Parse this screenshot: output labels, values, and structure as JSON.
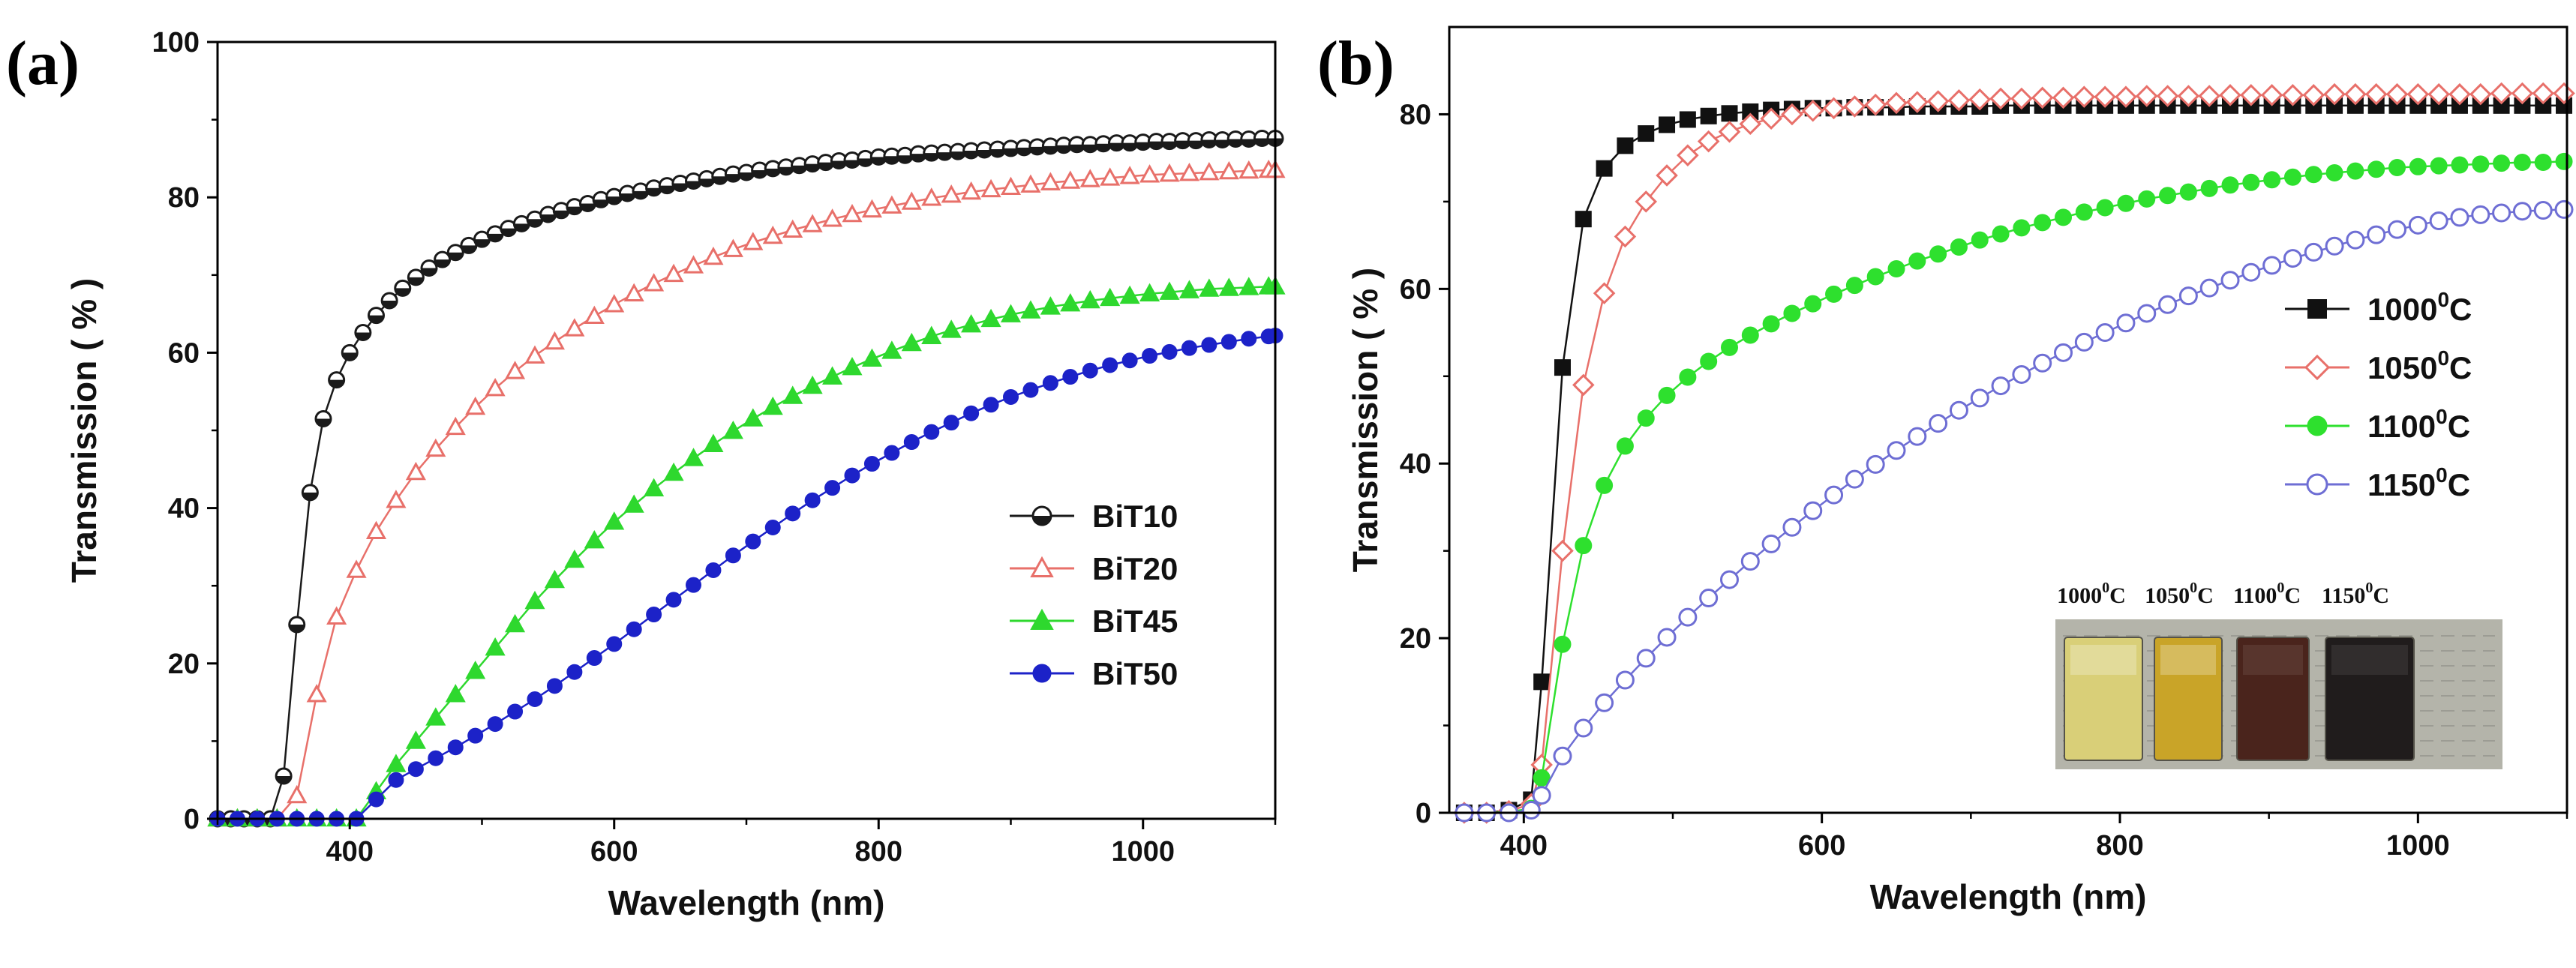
{
  "chart_data": [
    {
      "type": "scatter",
      "panel_label": "(a)",
      "xlabel": "Wavelength (nm)",
      "ylabel": "Transmission ( % )",
      "xlim": [
        300,
        1100
      ],
      "ylim": [
        0,
        100
      ],
      "xticks": [
        400,
        600,
        800,
        1000
      ],
      "yticks": [
        0,
        20,
        40,
        60,
        80,
        100
      ],
      "grid": false,
      "legend_position": "bottom-right",
      "series": [
        {
          "name": "BiT10",
          "color": "#1a1a1a",
          "marker": "half-circle",
          "x": [
            300,
            310,
            320,
            330,
            340,
            350,
            360,
            370,
            380,
            390,
            400,
            410,
            420,
            430,
            440,
            450,
            460,
            470,
            480,
            490,
            500,
            510,
            520,
            530,
            540,
            550,
            560,
            570,
            580,
            590,
            600,
            610,
            620,
            630,
            640,
            650,
            660,
            670,
            680,
            690,
            700,
            710,
            720,
            730,
            740,
            750,
            760,
            770,
            780,
            790,
            800,
            810,
            820,
            830,
            840,
            850,
            860,
            870,
            880,
            890,
            900,
            910,
            920,
            930,
            940,
            950,
            960,
            970,
            980,
            990,
            1000,
            1010,
            1020,
            1030,
            1040,
            1050,
            1060,
            1070,
            1080,
            1090,
            1100
          ],
          "y": [
            0,
            0,
            0,
            0,
            0,
            5.5,
            25,
            42,
            51.5,
            56.5,
            60,
            62.6,
            64.8,
            66.7,
            68.3,
            69.7,
            70.9,
            72,
            72.9,
            73.8,
            74.6,
            75.3,
            76,
            76.6,
            77.2,
            77.8,
            78.3,
            78.8,
            79.2,
            79.7,
            80.1,
            80.5,
            80.8,
            81.2,
            81.5,
            81.8,
            82.1,
            82.4,
            82.7,
            83,
            83.2,
            83.5,
            83.7,
            83.9,
            84.1,
            84.3,
            84.5,
            84.7,
            84.8,
            85,
            85.2,
            85.3,
            85.4,
            85.6,
            85.7,
            85.8,
            85.9,
            86,
            86.1,
            86.2,
            86.3,
            86.4,
            86.5,
            86.6,
            86.7,
            86.8,
            86.8,
            86.9,
            87,
            87,
            87.1,
            87.2,
            87.2,
            87.3,
            87.3,
            87.4,
            87.4,
            87.5,
            87.5,
            87.6,
            87.6
          ]
        },
        {
          "name": "BiT20",
          "color": "#e8706a",
          "marker": "open-triangle",
          "x": [
            300,
            315,
            330,
            345,
            360,
            375,
            390,
            405,
            420,
            435,
            450,
            465,
            480,
            495,
            510,
            525,
            540,
            555,
            570,
            585,
            600,
            615,
            630,
            645,
            660,
            675,
            690,
            705,
            720,
            735,
            750,
            765,
            780,
            795,
            810,
            825,
            840,
            855,
            870,
            885,
            900,
            915,
            930,
            945,
            960,
            975,
            990,
            1005,
            1020,
            1035,
            1050,
            1065,
            1080,
            1095,
            1100
          ],
          "y": [
            0,
            0,
            0,
            0,
            3,
            16,
            26,
            32,
            37,
            41,
            44.6,
            47.6,
            50.4,
            53,
            55.4,
            57.6,
            59.6,
            61.4,
            63.1,
            64.7,
            66.2,
            67.6,
            68.9,
            70.1,
            71.2,
            72.3,
            73.3,
            74.2,
            75,
            75.8,
            76.5,
            77.2,
            77.8,
            78.4,
            78.9,
            79.4,
            79.9,
            80.3,
            80.7,
            81,
            81.3,
            81.6,
            81.9,
            82.1,
            82.3,
            82.5,
            82.7,
            82.9,
            83,
            83.1,
            83.2,
            83.3,
            83.4,
            83.5,
            83.5
          ]
        },
        {
          "name": "BiT45",
          "color": "#2ed82e",
          "marker": "filled-triangle",
          "x": [
            300,
            315,
            330,
            345,
            360,
            375,
            390,
            405,
            420,
            435,
            450,
            465,
            480,
            495,
            510,
            525,
            540,
            555,
            570,
            585,
            600,
            615,
            630,
            645,
            660,
            675,
            690,
            705,
            720,
            735,
            750,
            765,
            780,
            795,
            810,
            825,
            840,
            855,
            870,
            885,
            900,
            915,
            930,
            945,
            960,
            975,
            990,
            1005,
            1020,
            1035,
            1050,
            1065,
            1080,
            1095,
            1100
          ],
          "y": [
            0,
            0,
            0,
            0,
            0,
            0,
            0,
            0,
            3.5,
            7,
            10,
            13,
            16,
            19,
            22,
            25,
            28,
            30.7,
            33.3,
            35.8,
            38.2,
            40.4,
            42.5,
            44.5,
            46.4,
            48.2,
            49.9,
            51.5,
            53,
            54.4,
            55.7,
            56.9,
            58.1,
            59.2,
            60.2,
            61.2,
            62.1,
            62.9,
            63.6,
            64.3,
            64.9,
            65.4,
            65.9,
            66.3,
            66.7,
            67,
            67.3,
            67.6,
            67.8,
            68,
            68.2,
            68.3,
            68.4,
            68.5,
            68.5
          ]
        },
        {
          "name": "BiT50",
          "color": "#1c22c8",
          "marker": "filled-circle",
          "x": [
            300,
            315,
            330,
            345,
            360,
            375,
            390,
            405,
            420,
            435,
            450,
            465,
            480,
            495,
            510,
            525,
            540,
            555,
            570,
            585,
            600,
            615,
            630,
            645,
            660,
            675,
            690,
            705,
            720,
            735,
            750,
            765,
            780,
            795,
            810,
            825,
            840,
            855,
            870,
            885,
            900,
            915,
            930,
            945,
            960,
            975,
            990,
            1005,
            1020,
            1035,
            1050,
            1065,
            1080,
            1095,
            1100
          ],
          "y": [
            0,
            0,
            0,
            0,
            0,
            0,
            0,
            0,
            2.5,
            5,
            6.4,
            7.8,
            9.2,
            10.7,
            12.2,
            13.8,
            15.4,
            17.1,
            18.9,
            20.7,
            22.5,
            24.4,
            26.3,
            28.2,
            30.1,
            32,
            33.9,
            35.7,
            37.5,
            39.3,
            41,
            42.6,
            44.2,
            45.7,
            47.1,
            48.5,
            49.8,
            51,
            52.2,
            53.3,
            54.3,
            55.2,
            56.1,
            56.9,
            57.7,
            58.4,
            59,
            59.6,
            60.1,
            60.6,
            61,
            61.4,
            61.8,
            62.1,
            62.2
          ]
        }
      ]
    },
    {
      "type": "scatter",
      "panel_label": "(b)",
      "xlabel": "Wavelength (nm)",
      "ylabel": "Transmission ( % )",
      "xlim": [
        350,
        1100
      ],
      "ylim": [
        0,
        90
      ],
      "xticks": [
        400,
        600,
        800,
        1000
      ],
      "yticks": [
        0,
        20,
        40,
        60,
        80
      ],
      "grid": false,
      "legend_position": "center-right",
      "series": [
        {
          "name": "1000",
          "sup": "0",
          "unit": "C",
          "color": "#111111",
          "marker": "filled-square",
          "x": [
            360,
            375,
            390,
            405,
            412,
            426,
            440,
            454,
            468,
            482,
            496,
            510,
            524,
            538,
            552,
            566,
            580,
            594,
            608,
            622,
            636,
            650,
            664,
            678,
            692,
            706,
            720,
            734,
            748,
            762,
            776,
            790,
            804,
            818,
            832,
            846,
            860,
            874,
            888,
            902,
            916,
            930,
            944,
            958,
            972,
            986,
            1000,
            1014,
            1028,
            1042,
            1056,
            1070,
            1084,
            1098
          ],
          "y": [
            0,
            0,
            0.3,
            1.5,
            15,
            51,
            68,
            73.8,
            76.4,
            77.8,
            78.8,
            79.4,
            79.8,
            80.1,
            80.3,
            80.5,
            80.6,
            80.7,
            80.7,
            80.8,
            80.8,
            80.8,
            80.9,
            80.9,
            80.9,
            80.9,
            81,
            81,
            81,
            81,
            81,
            81,
            81,
            81,
            81,
            81,
            81,
            81,
            81,
            81,
            81,
            81,
            81,
            81,
            81,
            81,
            81,
            81,
            81,
            81,
            81,
            81,
            81,
            81
          ]
        },
        {
          "name": "1050",
          "sup": "0",
          "unit": "C",
          "color": "#e8706a",
          "marker": "open-diamond",
          "x": [
            360,
            375,
            390,
            405,
            412,
            426,
            440,
            454,
            468,
            482,
            496,
            510,
            524,
            538,
            552,
            566,
            580,
            594,
            608,
            622,
            636,
            650,
            664,
            678,
            692,
            706,
            720,
            734,
            748,
            762,
            776,
            790,
            804,
            818,
            832,
            846,
            860,
            874,
            888,
            902,
            916,
            930,
            944,
            958,
            972,
            986,
            1000,
            1014,
            1028,
            1042,
            1056,
            1070,
            1084,
            1098
          ],
          "y": [
            0,
            0,
            0.2,
            1,
            5.5,
            30,
            49,
            59.5,
            66,
            70,
            73,
            75.3,
            76.9,
            78,
            78.9,
            79.5,
            80,
            80.4,
            80.7,
            80.9,
            81.1,
            81.3,
            81.4,
            81.5,
            81.6,
            81.7,
            81.8,
            81.8,
            81.9,
            81.9,
            82,
            82,
            82,
            82.1,
            82.1,
            82.1,
            82.1,
            82.2,
            82.2,
            82.2,
            82.2,
            82.2,
            82.3,
            82.3,
            82.3,
            82.3,
            82.3,
            82.3,
            82.3,
            82.3,
            82.4,
            82.4,
            82.4,
            82.4
          ]
        },
        {
          "name": "1100",
          "sup": "0",
          "unit": "C",
          "color": "#2ee02e",
          "marker": "filled-circle",
          "x": [
            360,
            375,
            390,
            405,
            412,
            426,
            440,
            454,
            468,
            482,
            496,
            510,
            524,
            538,
            552,
            566,
            580,
            594,
            608,
            622,
            636,
            650,
            664,
            678,
            692,
            706,
            720,
            734,
            748,
            762,
            776,
            790,
            804,
            818,
            832,
            846,
            860,
            874,
            888,
            902,
            916,
            930,
            944,
            958,
            972,
            986,
            1000,
            1014,
            1028,
            1042,
            1056,
            1070,
            1084,
            1098
          ],
          "y": [
            0,
            0,
            0.1,
            0.5,
            4,
            19.3,
            30.6,
            37.5,
            42,
            45.2,
            47.8,
            49.9,
            51.7,
            53.3,
            54.7,
            56,
            57.2,
            58.3,
            59.4,
            60.4,
            61.4,
            62.3,
            63.2,
            64,
            64.8,
            65.6,
            66.3,
            67,
            67.6,
            68.2,
            68.8,
            69.3,
            69.8,
            70.3,
            70.7,
            71.1,
            71.5,
            71.9,
            72.2,
            72.5,
            72.8,
            73.1,
            73.3,
            73.5,
            73.7,
            73.9,
            74,
            74.1,
            74.2,
            74.3,
            74.4,
            74.5,
            74.5,
            74.6
          ]
        },
        {
          "name": "1150",
          "sup": "0",
          "unit": "C",
          "color": "#6e6ed4",
          "marker": "open-circle",
          "x": [
            360,
            375,
            390,
            405,
            412,
            426,
            440,
            454,
            468,
            482,
            496,
            510,
            524,
            538,
            552,
            566,
            580,
            594,
            608,
            622,
            636,
            650,
            664,
            678,
            692,
            706,
            720,
            734,
            748,
            762,
            776,
            790,
            804,
            818,
            832,
            846,
            860,
            874,
            888,
            902,
            916,
            930,
            944,
            958,
            972,
            986,
            1000,
            1014,
            1028,
            1042,
            1056,
            1070,
            1084,
            1098
          ],
          "y": [
            0,
            0,
            0,
            0.3,
            2,
            6.5,
            9.7,
            12.6,
            15.2,
            17.7,
            20.1,
            22.4,
            24.6,
            26.7,
            28.8,
            30.8,
            32.7,
            34.6,
            36.4,
            38.2,
            39.9,
            41.5,
            43.1,
            44.6,
            46.1,
            47.5,
            48.9,
            50.2,
            51.5,
            52.7,
            53.9,
            55,
            56.1,
            57.2,
            58.2,
            59.2,
            60.1,
            61,
            61.9,
            62.7,
            63.5,
            64.2,
            64.9,
            65.6,
            66.2,
            66.8,
            67.3,
            67.8,
            68.2,
            68.5,
            68.7,
            68.9,
            69,
            69.1
          ]
        }
      ],
      "inset": {
        "labels": [
          {
            "value": "1000",
            "sup": "0",
            "unit": "C"
          },
          {
            "value": "1050",
            "sup": "0",
            "unit": "C"
          },
          {
            "value": "1100",
            "sup": "0",
            "unit": "C"
          },
          {
            "value": "1150",
            "sup": "0",
            "unit": "C"
          }
        ],
        "sample_colors": [
          "#d9cf78",
          "#c9a428",
          "#4a241c",
          "#201c1c"
        ],
        "background_color": "#b4b4aa"
      }
    }
  ]
}
